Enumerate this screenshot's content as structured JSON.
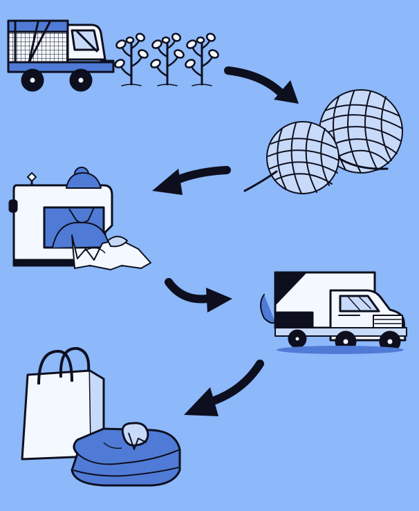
{
  "colors": {
    "background": "#8db8fa",
    "ink": "#0d0f1e",
    "mid_blue": "#4f7bd6",
    "light_blue": "#c8daf9",
    "pale": "#e3edfc",
    "white": "#f4f8ff"
  },
  "stages": [
    {
      "id": "cotton-harvest",
      "icons": [
        "harvester-icon",
        "cotton-plant-icon"
      ]
    },
    {
      "id": "yarn",
      "icons": [
        "yarn-balls-icon"
      ]
    },
    {
      "id": "sewing",
      "icons": [
        "sewing-machine-icon",
        "seamstress-icon"
      ]
    },
    {
      "id": "shipping",
      "icons": [
        "delivery-truck-icon"
      ]
    },
    {
      "id": "retail",
      "icons": [
        "shopping-bag-icon",
        "folded-shirt-icon"
      ]
    }
  ],
  "flow_arrows": [
    {
      "from": "cotton-harvest",
      "to": "yarn"
    },
    {
      "from": "yarn",
      "to": "sewing"
    },
    {
      "from": "sewing",
      "to": "shipping"
    },
    {
      "from": "shipping",
      "to": "retail"
    }
  ]
}
